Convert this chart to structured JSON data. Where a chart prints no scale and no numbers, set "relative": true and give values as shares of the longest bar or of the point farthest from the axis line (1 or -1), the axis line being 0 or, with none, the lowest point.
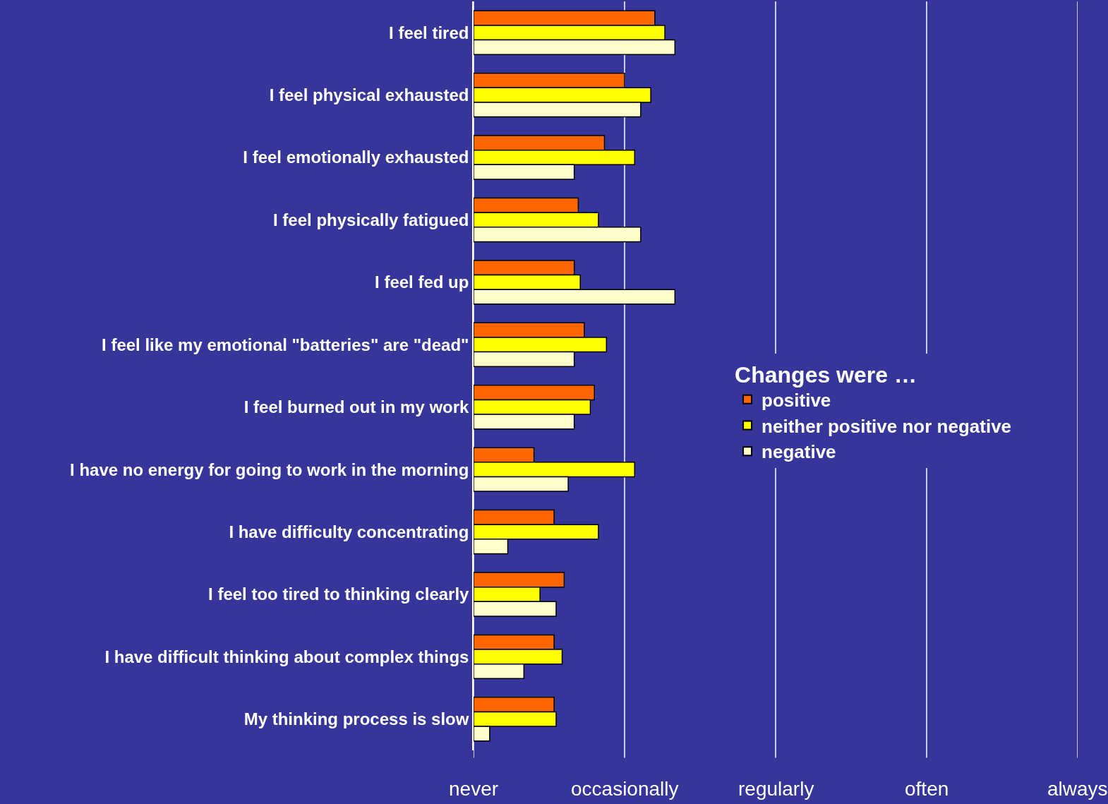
{
  "chart_data": {
    "type": "bar",
    "orientation": "horizontal",
    "relative": true,
    "categories": [
      "I feel tired",
      "I feel physical exhausted",
      "I feel emotionally exhausted",
      "I feel physically fatigued",
      "I feel fed up",
      "I feel like my emotional \"batteries\" are \"dead\"",
      "I feel burned out in my work",
      "I have no energy for going to work in the morning",
      "I have difficulty concentrating",
      "I feel too tired to thinking clearly",
      "I have difficult thinking about complex things",
      "My thinking process is slow"
    ],
    "series": [
      {
        "name": "positive",
        "color": "#ff6600",
        "values": [
          0.9,
          0.75,
          0.65,
          0.52,
          0.5,
          0.55,
          0.6,
          0.3,
          0.4,
          0.45,
          0.4,
          0.4
        ]
      },
      {
        "name": "neither positive nor negative",
        "color": "#ffff00",
        "values": [
          0.95,
          0.88,
          0.8,
          0.62,
          0.53,
          0.66,
          0.58,
          0.8,
          0.62,
          0.33,
          0.44,
          0.41
        ]
      },
      {
        "name": "negative",
        "color": "#ffffcc",
        "values": [
          1.0,
          0.83,
          0.5,
          0.83,
          1.0,
          0.5,
          0.5,
          0.47,
          0.17,
          0.41,
          0.25,
          0.08
        ]
      }
    ],
    "legend_title": "Changes were …",
    "legend": "right",
    "ref_lines": [
      {
        "axis": "x",
        "value": 0,
        "label": "never",
        "color": "#ffffff"
      },
      {
        "axis": "x",
        "value": 0.75,
        "label": "occasionally",
        "color": "#ffffff"
      },
      {
        "axis": "x",
        "value": 1.5,
        "label": "regularly",
        "color": "#ffffff"
      },
      {
        "axis": "x",
        "value": 2.25,
        "label": "often",
        "color": "#ffffff"
      },
      {
        "axis": "x",
        "value": 3.0,
        "label": "always",
        "color": "#ffffff"
      }
    ]
  }
}
